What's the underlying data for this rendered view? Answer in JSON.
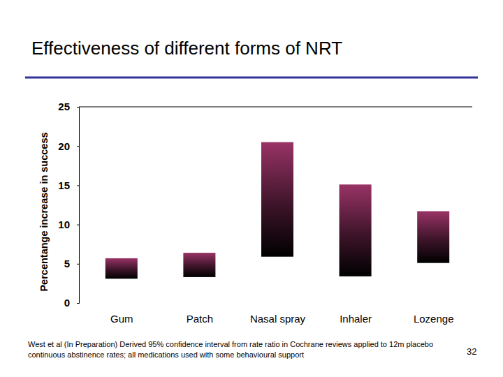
{
  "chart_data": {
    "type": "range_bar",
    "title": "Effectiveness of different forms of NRT",
    "y_label": "Percentange increase in success",
    "categories": [
      "Gum",
      "Patch",
      "Nasal spray",
      "Inhaler",
      "Lozenge"
    ],
    "low": [
      3.1,
      3.3,
      5.9,
      3.4,
      5.1
    ],
    "high": [
      5.7,
      6.4,
      20.5,
      15.1,
      11.7
    ],
    "color": "#993366",
    "ylim": [
      0,
      25
    ],
    "yticks": [
      0,
      5,
      10,
      15,
      20,
      25
    ],
    "grid": false,
    "footnote": "West et al (In Preparation) Derived 95% confidence interval from rate ratio in Cochrane reviews applied to 12m placebo continuous abstinence rates; all medications used with some behavioural support",
    "page_number": "32"
  }
}
